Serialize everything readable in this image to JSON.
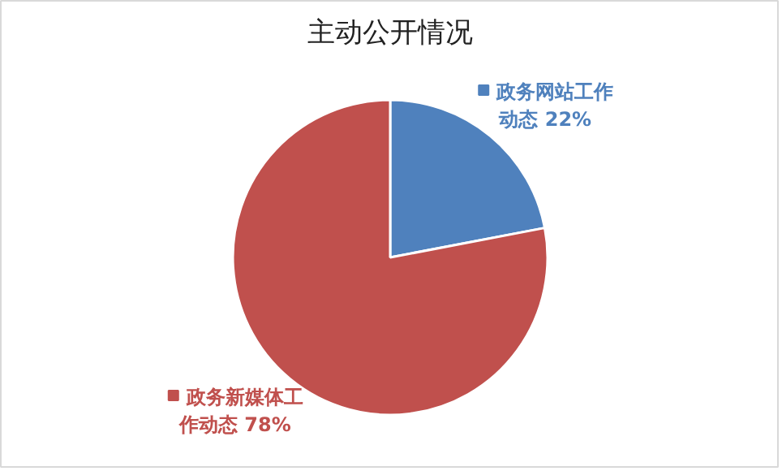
{
  "chart_data": {
    "type": "pie",
    "title": "主动公开情况",
    "categories": [
      "政务网站工作动态",
      "政务新媒体工作动态"
    ],
    "values": [
      22,
      78
    ],
    "colors": [
      "#4f81bd",
      "#c0504d"
    ],
    "value_labels": [
      "22%",
      "78%"
    ],
    "legend": true
  }
}
